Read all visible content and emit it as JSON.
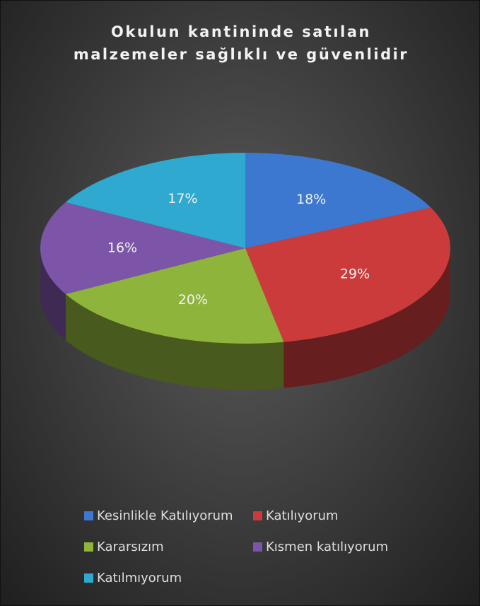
{
  "chart_data": {
    "type": "pie",
    "title": "Okulun kantininde satılan malzemeler sağlıklı ve güvenlidir",
    "categories": [
      "Kesinlikle Katılıyorum",
      "Katılıyorum",
      "Kararsızım",
      "Kısmen katılıyorum",
      "Katılmıyorum"
    ],
    "values": [
      18,
      29,
      20,
      16,
      17
    ],
    "value_labels": [
      "18%",
      "29%",
      "20%",
      "16%",
      "17%"
    ],
    "colors": [
      "#3d78d0",
      "#cc3b3b",
      "#8fb43b",
      "#7d55a8",
      "#2fa9cf"
    ],
    "legend": "bottom"
  }
}
